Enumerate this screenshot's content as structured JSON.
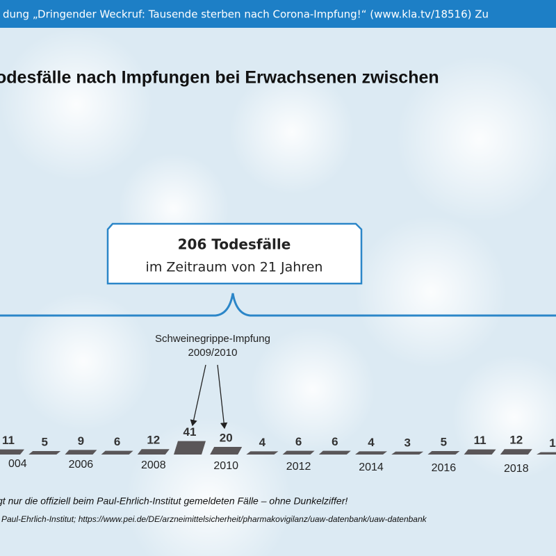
{
  "chart_data": {
    "type": "bar",
    "header": "dung „Dringender Weckruf: Tausende sterben nach Corona-Impfung!“ (www.kla.tv/18516)   Zu",
    "title": "odesfälle nach Impfungen bei Erwachsenen zwischen",
    "callout": {
      "headline": "206 Todesfälle",
      "text": "im Zeitraum von 21 Jahren"
    },
    "annotation": [
      "Schweinegrippe-Impfung",
      "2009/2010"
    ],
    "categories": [
      "004",
      null,
      "2006",
      null,
      "2008",
      null,
      "2010",
      null,
      "2012",
      null,
      "2014",
      null,
      "2016",
      null,
      "2018",
      null
    ],
    "values": [
      11,
      5,
      9,
      6,
      12,
      41,
      20,
      4,
      6,
      6,
      4,
      3,
      5,
      11,
      12,
      1
    ],
    "color": "#5a5658",
    "footnotes": [
      "gt nur die offiziell beim Paul-Ehrlich-Institut gemeldeten Fälle – ohne Dunkelziffer!",
      "Paul-Ehrlich-Institut; https://www.pei.de/DE/arzneimittelsicherheit/pharmakovigilanz/uaw-datenbank/uaw-datenbank"
    ]
  }
}
